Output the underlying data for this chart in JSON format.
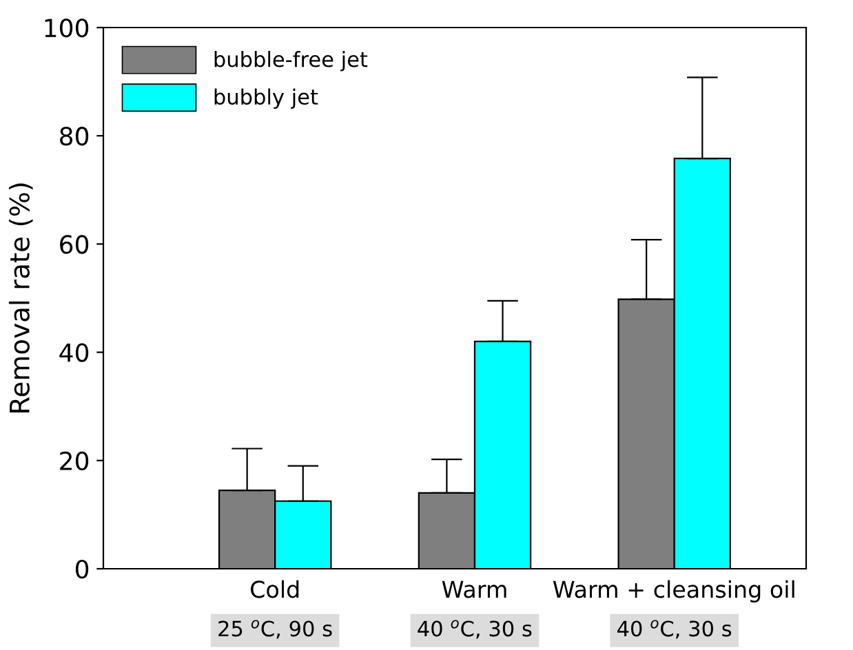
{
  "chart_data": {
    "type": "bar",
    "ylabel": "Removal rate (%)",
    "categories": [
      "Cold",
      "Warm",
      "Warm + cleansing oil"
    ],
    "series": [
      {
        "name": "bubble-free jet",
        "color": "#7f7f7f",
        "values": [
          14.5,
          14,
          49.8
        ],
        "errors": [
          [
            14.5,
            22.2
          ],
          [
            14,
            20.2
          ],
          [
            49.8,
            60.8
          ]
        ]
      },
      {
        "name": "bubbly jet",
        "color": "#00ffff",
        "values": [
          12.5,
          42,
          75.8
        ],
        "errors": [
          [
            12.5,
            19
          ],
          [
            42,
            49.5
          ],
          [
            75.8,
            90.8
          ]
        ]
      }
    ],
    "ylim": [
      0,
      100
    ],
    "yticks": [
      0,
      20,
      40,
      60,
      80,
      100
    ],
    "grid": false,
    "legend": "top left",
    "annotations": [
      "25 $^{o}$C, 90 s",
      "40 $^{o}$C, 30 s",
      "40 $^{o}$C, 30 s"
    ]
  }
}
